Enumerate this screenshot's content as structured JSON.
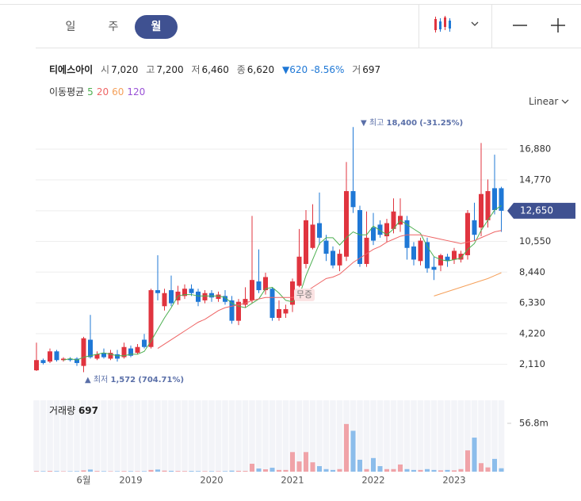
{
  "tabs": [
    "일",
    "주",
    "월"
  ],
  "scale_mode": "Linear",
  "quote": {
    "name": "티에스아이",
    "items": [
      {
        "label": "시",
        "value": "7,020"
      },
      {
        "label": "고",
        "value": "7,200"
      },
      {
        "label": "저",
        "value": "6,460"
      },
      {
        "label": "종",
        "value": "6,620"
      }
    ],
    "change": {
      "arrow": "▼",
      "value": "620",
      "pct": "-8.56%"
    },
    "volume": {
      "label": "거",
      "value": "697"
    }
  },
  "ma_label": "이동평균",
  "chart_data": {
    "type": "candlestick",
    "categories": [
      null,
      null,
      null,
      null,
      null,
      null,
      null,
      "6월",
      null,
      null,
      null,
      null,
      null,
      null,
      "2019",
      null,
      null,
      null,
      null,
      null,
      null,
      null,
      null,
      null,
      null,
      null,
      "2020",
      null,
      null,
      null,
      null,
      null,
      null,
      null,
      null,
      null,
      null,
      null,
      "2021",
      null,
      null,
      null,
      null,
      null,
      null,
      null,
      null,
      null,
      null,
      null,
      "2022",
      null,
      null,
      null,
      null,
      null,
      null,
      null,
      null,
      null,
      null,
      null,
      "2023",
      null,
      null,
      null,
      null,
      null,
      null,
      null
    ],
    "open": [
      1700,
      2400,
      2300,
      3000,
      2400,
      2500,
      2500,
      2000,
      3800,
      2500,
      2900,
      2500,
      2800,
      2600,
      3200,
      2900,
      3800,
      3300,
      7200,
      6100,
      7200,
      6500,
      6800,
      7300,
      7100,
      6500,
      7000,
      6600,
      6800,
      6500,
      5100,
      6200,
      6500,
      7800,
      7200,
      7300,
      5300,
      5600,
      6200,
      7500,
      9000,
      10100,
      11800,
      10600,
      9900,
      8900,
      9500,
      14000,
      12700,
      9000,
      11500,
      11700,
      10900,
      11400,
      11700,
      12000,
      10200,
      9200,
      10500,
      8800,
      8900,
      9500,
      9300,
      9300,
      9600,
      12000,
      11500,
      12000,
      14200,
      14200
    ],
    "high": [
      3600,
      2500,
      3200,
      3100,
      2600,
      2600,
      2600,
      4000,
      5500,
      3000,
      3200,
      3100,
      3100,
      3600,
      3400,
      3500,
      4200,
      7300,
      9600,
      7300,
      8200,
      7500,
      7600,
      7600,
      7300,
      7200,
      7200,
      7100,
      7200,
      6800,
      6600,
      7400,
      12300,
      10000,
      8400,
      7400,
      6500,
      6200,
      8000,
      11400,
      12700,
      13100,
      13900,
      11000,
      10200,
      10000,
      16000,
      18400,
      13000,
      12600,
      12500,
      12000,
      12100,
      13500,
      13500,
      12300,
      10500,
      10800,
      10800,
      9500,
      9700,
      9700,
      10100,
      9900,
      12700,
      13200,
      17300,
      14800,
      16500,
      14300
    ],
    "low": [
      1650,
      2100,
      2200,
      2300,
      2300,
      2300,
      2000,
      1572,
      2500,
      2400,
      2500,
      2400,
      2300,
      2500,
      2600,
      2800,
      3200,
      3200,
      6500,
      5800,
      6100,
      6200,
      6600,
      6800,
      6100,
      6300,
      6400,
      6400,
      6200,
      4900,
      4800,
      6000,
      6300,
      7000,
      6900,
      5100,
      5100,
      5300,
      5700,
      7400,
      8700,
      10000,
      10300,
      9200,
      8700,
      8500,
      9200,
      12500,
      8800,
      8800,
      10300,
      10800,
      10500,
      11100,
      11200,
      9300,
      8900,
      8900,
      8400,
      7900,
      8500,
      8800,
      9000,
      9100,
      9300,
      10600,
      10900,
      11500,
      12400,
      11200
    ],
    "close": [
      2400,
      2200,
      3000,
      2400,
      2500,
      2400,
      2200,
      3900,
      2600,
      2800,
      2600,
      2900,
      2500,
      3300,
      2700,
      3300,
      3300,
      7200,
      7000,
      7000,
      6300,
      7100,
      7300,
      7000,
      6400,
      7000,
      6700,
      6900,
      6400,
      5100,
      6400,
      6600,
      7900,
      7200,
      8100,
      5300,
      5900,
      5900,
      7800,
      9500,
      12000,
      11700,
      10800,
      9700,
      8900,
      9700,
      14000,
      12900,
      9000,
      10800,
      10600,
      11000,
      11800,
      12600,
      12300,
      10100,
      9300,
      10600,
      8700,
      8600,
      9600,
      9200,
      9900,
      9700,
      12500,
      11000,
      13800,
      14000,
      12700,
      12650
    ],
    "up_color": "#e0343f",
    "down_color": "#1f78d6",
    "ylim": [
      1000,
      19500
    ],
    "yticks": [
      {
        "value": 2110,
        "label": "2,110"
      },
      {
        "value": 4220,
        "label": "4,220"
      },
      {
        "value": 6330,
        "label": "6,330"
      },
      {
        "value": 8440,
        "label": "8,440"
      },
      {
        "value": 10550,
        "label": "10,550"
      },
      {
        "value": 12650,
        "label": "12,650"
      },
      {
        "value": 14770,
        "label": "14,770"
      },
      {
        "value": 16880,
        "label": "16,880"
      }
    ],
    "grid": true,
    "price_marker": {
      "value": 12650,
      "label": "12,650"
    },
    "high_annotation": {
      "marker": "▼",
      "label": "최고",
      "value": "18,400",
      "pct": "(-31.25%)"
    },
    "low_annotation": {
      "marker": "▲",
      "label": "최저",
      "value": "1,572",
      "pct": "(704.71%)"
    },
    "event_label": "무증",
    "moving_averages": [
      {
        "name": "5",
        "color": "#4caf50",
        "values": [
          null,
          null,
          null,
          null,
          2400,
          2500,
          2400,
          2600,
          2700,
          2800,
          2900,
          2800,
          2700,
          2700,
          2800,
          2800,
          3000,
          3700,
          4500,
          5300,
          6000,
          6800,
          6900,
          6900,
          6800,
          6800,
          6800,
          6800,
          6700,
          6300,
          6100,
          6000,
          6300,
          6600,
          7300,
          7400,
          7000,
          6500,
          6400,
          6800,
          8200,
          9300,
          10400,
          10800,
          10800,
          10300,
          10800,
          11200,
          11000,
          11000,
          11600,
          11300,
          11000,
          11400,
          12000,
          11700,
          11400,
          11100,
          10200,
          9500,
          9300,
          9200,
          9300,
          9400,
          10000,
          10400,
          11300,
          12000,
          12700,
          13000
        ]
      },
      {
        "name": "20",
        "color": "#ee6464",
        "values": [
          null,
          null,
          null,
          null,
          null,
          null,
          null,
          null,
          null,
          null,
          null,
          null,
          null,
          null,
          null,
          null,
          null,
          null,
          3200,
          3500,
          3800,
          4100,
          4400,
          4700,
          5000,
          5200,
          5500,
          5800,
          6000,
          6100,
          6200,
          6300,
          6500,
          6600,
          6700,
          6700,
          6700,
          6700,
          6700,
          6800,
          7100,
          7400,
          7700,
          8000,
          8100,
          8300,
          8700,
          9100,
          9400,
          9700,
          10000,
          10200,
          10500,
          10700,
          10900,
          11000,
          11000,
          11000,
          10900,
          10800,
          10700,
          10600,
          10500,
          10400,
          10500,
          10600,
          10800,
          11000,
          11200,
          11300
        ]
      },
      {
        "name": "60",
        "color": "#f5a05a",
        "values": [
          null,
          null,
          null,
          null,
          null,
          null,
          null,
          null,
          null,
          null,
          null,
          null,
          null,
          null,
          null,
          null,
          null,
          null,
          null,
          null,
          null,
          null,
          null,
          null,
          null,
          null,
          null,
          null,
          null,
          null,
          null,
          null,
          null,
          null,
          null,
          null,
          null,
          null,
          null,
          null,
          null,
          null,
          null,
          null,
          null,
          null,
          null,
          null,
          null,
          null,
          null,
          null,
          null,
          null,
          null,
          null,
          null,
          null,
          null,
          6800,
          6950,
          7100,
          7250,
          7400,
          7550,
          7700,
          7850,
          8000,
          8200,
          8400
        ]
      },
      {
        "name": "120",
        "color": "#9a52d6",
        "values": [
          null,
          null,
          null,
          null,
          null,
          null,
          null,
          null,
          null,
          null,
          null,
          null,
          null,
          null,
          null,
          null,
          null,
          null,
          null,
          null,
          null,
          null,
          null,
          null,
          null,
          null,
          null,
          null,
          null,
          null,
          null,
          null,
          null,
          null,
          null,
          null,
          null,
          null,
          null,
          null,
          null,
          null,
          null,
          null,
          null,
          null,
          null,
          null,
          null,
          null,
          null,
          null,
          null,
          null,
          null,
          null,
          null,
          null,
          null,
          null,
          null,
          null,
          null,
          null,
          null,
          null,
          null,
          null,
          null,
          null
        ]
      }
    ],
    "volume": {
      "label": "거래량",
      "last": "697",
      "up_color": "#f0a3a8",
      "down_color": "#8cbdeb",
      "values": [
        800000,
        600000,
        900000,
        700000,
        500000,
        500000,
        600000,
        1500000,
        2500000,
        800000,
        600000,
        500000,
        500000,
        700000,
        600000,
        500000,
        600000,
        2000000,
        2500000,
        1200000,
        1000000,
        800000,
        700000,
        800000,
        700000,
        600000,
        600000,
        500000,
        600000,
        1200000,
        1000000,
        900000,
        9300000,
        3700000,
        2800000,
        4600000,
        2000000,
        2000000,
        23000000,
        12000000,
        23000000,
        11000000,
        6500000,
        3000000,
        2000000,
        3000000,
        56000000,
        48000000,
        14000000,
        3000000,
        16000000,
        6500000,
        3000000,
        3000000,
        8400000,
        3000000,
        2000000,
        2000000,
        3000000,
        2000000,
        1500000,
        2000000,
        1500000,
        3000000,
        25000000,
        40000000,
        10000000,
        5000000,
        15000000,
        4000000
      ],
      "ylim": [
        0,
        83800000
      ],
      "yticks": [
        {
          "value": 56800000,
          "label": "56.8m"
        }
      ]
    }
  }
}
